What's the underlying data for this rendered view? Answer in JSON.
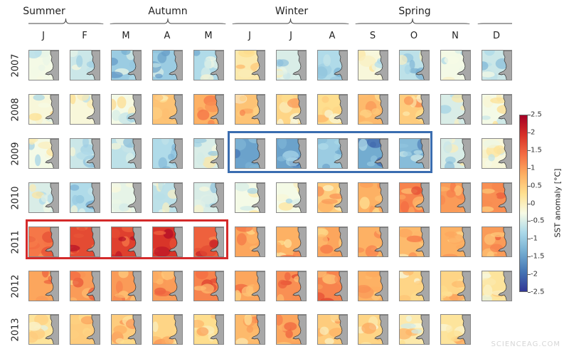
{
  "chart_data": {
    "type": "heatmap",
    "seasons": [
      "Summer",
      "Autumn",
      "Winter",
      "Spring"
    ],
    "months": [
      "J",
      "F",
      "M",
      "A",
      "M",
      "J",
      "J",
      "A",
      "S",
      "O",
      "N",
      "D"
    ],
    "years": [
      "2007",
      "2008",
      "2009",
      "2010",
      "2011",
      "2012",
      "2013"
    ],
    "mean_anomaly_estimates": [
      [
        -0.3,
        -0.6,
        -1.0,
        -1.0,
        -0.8,
        0.1,
        -0.5,
        -0.8,
        -0.2,
        -0.7,
        -0.3,
        -0.6
      ],
      [
        -0.2,
        -0.2,
        -0.3,
        0.6,
        0.8,
        0.6,
        0.4,
        0.3,
        0.7,
        0.5,
        -0.5,
        -0.3
      ],
      [
        -0.3,
        -0.6,
        -0.7,
        -0.8,
        -0.5,
        -1.5,
        -1.5,
        -1.0,
        -1.4,
        -1.2,
        -0.5,
        -0.2
      ],
      [
        -0.5,
        -0.8,
        -0.4,
        -0.7,
        -0.5,
        -0.3,
        -0.3,
        0.5,
        0.8,
        1.2,
        1.0,
        1.1
      ],
      [
        1.3,
        1.7,
        1.8,
        1.9,
        1.5,
        0.9,
        0.8,
        0.9,
        0.8,
        0.7,
        0.8,
        1.0
      ],
      [
        0.9,
        1.0,
        1.0,
        1.0,
        1.2,
        0.9,
        1.1,
        1.2,
        0.8,
        0.4,
        0.4,
        0.2
      ],
      [
        0.2,
        0.5,
        0.5,
        0.4,
        0.3,
        0.7,
        0.9,
        0.5,
        0.4,
        0.1,
        0.2,
        null
      ]
    ],
    "colorbar": {
      "label": "SST anomaly [°C]",
      "range": [
        -2.5,
        2.5
      ],
      "ticks": [
        "2.5",
        "2",
        "1.5",
        "1",
        "0.5",
        "0",
        "-0.5",
        "-1",
        "-1.5",
        "-2",
        "-2.5"
      ],
      "colormap": [
        "#313695",
        "#4575b4",
        "#74add1",
        "#abd9e9",
        "#f7fbe6",
        "#fee090",
        "#fdae61",
        "#f46d43",
        "#d73027",
        "#a50026"
      ]
    },
    "highlights": [
      {
        "color": "#3a6db0",
        "year": "2009",
        "months": "J-O (Winter–Spring)"
      },
      {
        "color": "#d42a2a",
        "year": "2011",
        "months": "J-M (Summer–Autumn)"
      }
    ],
    "land_color": "#a8a8a8"
  },
  "watermark": "SCIENCEAG.COM"
}
